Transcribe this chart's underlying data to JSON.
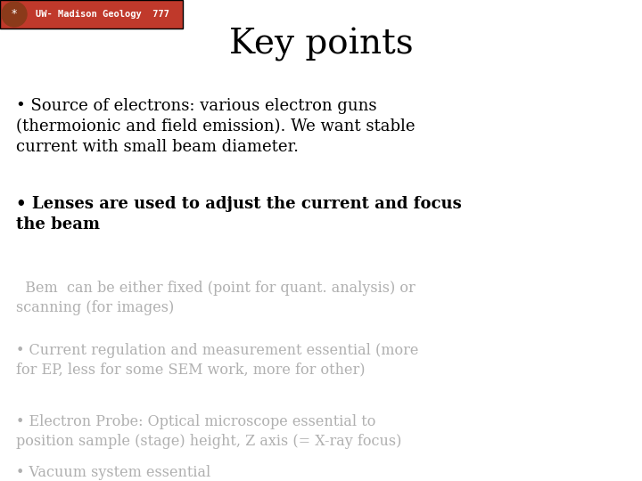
{
  "title": "Key points",
  "title_fontsize": 28,
  "title_color": "#000000",
  "background_color": "#ffffff",
  "header_bg_color": "#c0392b",
  "header_text": "UW- Madison Geology  777",
  "header_text_color": "#ffffff",
  "header_fontsize": 7.5,
  "bullet_items": [
    {
      "text": "• Source of electrons: various electron guns\n(thermoionic and field emission). We want stable\ncurrent with small beam diameter.",
      "color": "#000000",
      "bold": false,
      "fontsize": 13
    },
    {
      "text": "• Lenses are used to adjust the current and focus\nthe beam",
      "color": "#000000",
      "bold": true,
      "fontsize": 13
    },
    {
      "text": "  Bem  can be either fixed (point for quant. analysis) or\nscanning (for images)",
      "color": "#b0b0b0",
      "bold": false,
      "fontsize": 11.5
    },
    {
      "text": "• Current regulation and measurement essential (more\nfor EP, less for some SEM work, more for other)",
      "color": "#b0b0b0",
      "bold": false,
      "fontsize": 11.5
    },
    {
      "text": "• Electron Probe: Optical microscope essential to\nposition sample (stage) height, Z axis (= X-ray focus)",
      "color": "#b0b0b0",
      "bold": false,
      "fontsize": 11.5
    },
    {
      "text": "• Vacuum system essential",
      "color": "#b0b0b0",
      "bold": false,
      "fontsize": 11.5
    }
  ]
}
